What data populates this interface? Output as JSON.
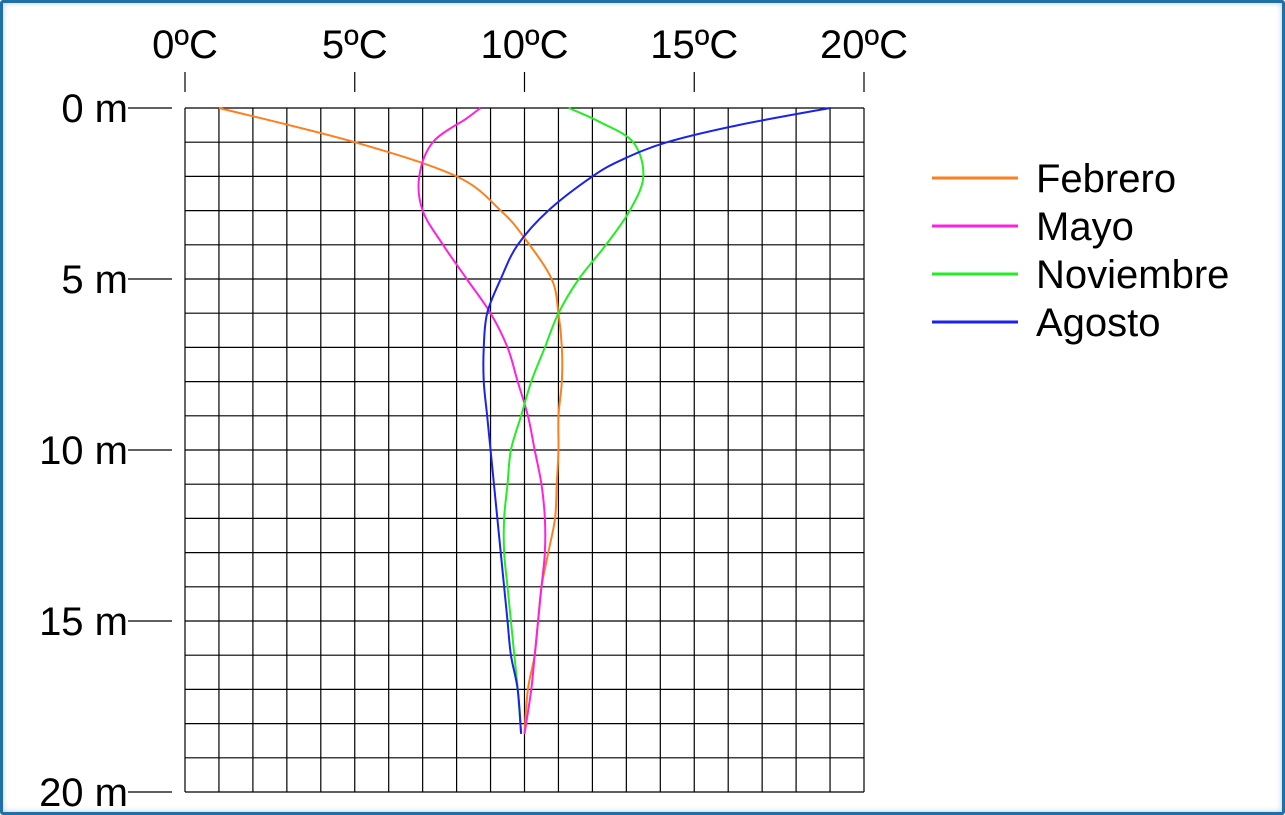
{
  "chart_data": {
    "type": "line",
    "orientation": "depth-profile",
    "x_axis": {
      "ticks": [
        0,
        5,
        10,
        15,
        20
      ],
      "tick_labels": [
        "0ºC",
        "5ºC",
        "10ºC",
        "15ºC",
        "20ºC"
      ],
      "range": [
        0,
        20
      ],
      "position": "top"
    },
    "y_axis": {
      "ticks": [
        0,
        5,
        10,
        15,
        20
      ],
      "tick_labels": [
        "0 m",
        "5 m",
        "10 m",
        "15 m",
        "20 m"
      ],
      "range": [
        0,
        20
      ],
      "inverted": true
    },
    "grid": true,
    "legend_position": "right",
    "series": [
      {
        "name": "Febrero",
        "color": "#ff7f1e",
        "depth": [
          0,
          1,
          2,
          3,
          3.8,
          5,
          6,
          7,
          8,
          9,
          10,
          11,
          12,
          13,
          14,
          15,
          16,
          17,
          18.3
        ],
        "temp": [
          1.0,
          5.0,
          8.0,
          9.3,
          10.0,
          10.8,
          11.0,
          11.1,
          11.1,
          11.0,
          11.0,
          10.95,
          10.9,
          10.7,
          10.5,
          10.4,
          10.3,
          10.1,
          10.0
        ]
      },
      {
        "name": "Mayo",
        "color": "#ff22dd",
        "depth": [
          0,
          0.3,
          1,
          2,
          3,
          4,
          5,
          6,
          7,
          8,
          9,
          10,
          11,
          12,
          13,
          14,
          15,
          16,
          17,
          18.3
        ],
        "temp": [
          8.7,
          8.3,
          7.3,
          6.9,
          7.0,
          7.6,
          8.3,
          9.0,
          9.5,
          9.8,
          10.1,
          10.3,
          10.5,
          10.6,
          10.6,
          10.5,
          10.4,
          10.3,
          10.2,
          10.0
        ]
      },
      {
        "name": "Noviembre",
        "color": "#22ee22",
        "depth": [
          0,
          0.4,
          1,
          2,
          3,
          4,
          5,
          6,
          7,
          8,
          9,
          10,
          11,
          12,
          13,
          14,
          15,
          16,
          17,
          18.3
        ],
        "temp": [
          11.3,
          12.2,
          13.2,
          13.5,
          13.1,
          12.4,
          11.6,
          11.0,
          10.6,
          10.2,
          9.9,
          9.6,
          9.5,
          9.4,
          9.4,
          9.5,
          9.6,
          9.7,
          9.8,
          9.9
        ]
      },
      {
        "name": "Agosto",
        "color": "#1a22ee",
        "depth": [
          0,
          0.5,
          1,
          1.5,
          2,
          3,
          4,
          5,
          6,
          7,
          8,
          9,
          10,
          11,
          12,
          13,
          14,
          15,
          16,
          17,
          18.3
        ],
        "temp": [
          19.0,
          16.3,
          14.2,
          12.9,
          12.0,
          10.7,
          9.8,
          9.3,
          8.9,
          8.8,
          8.8,
          8.9,
          9.0,
          9.1,
          9.2,
          9.3,
          9.4,
          9.5,
          9.6,
          9.8,
          9.9
        ]
      }
    ]
  }
}
